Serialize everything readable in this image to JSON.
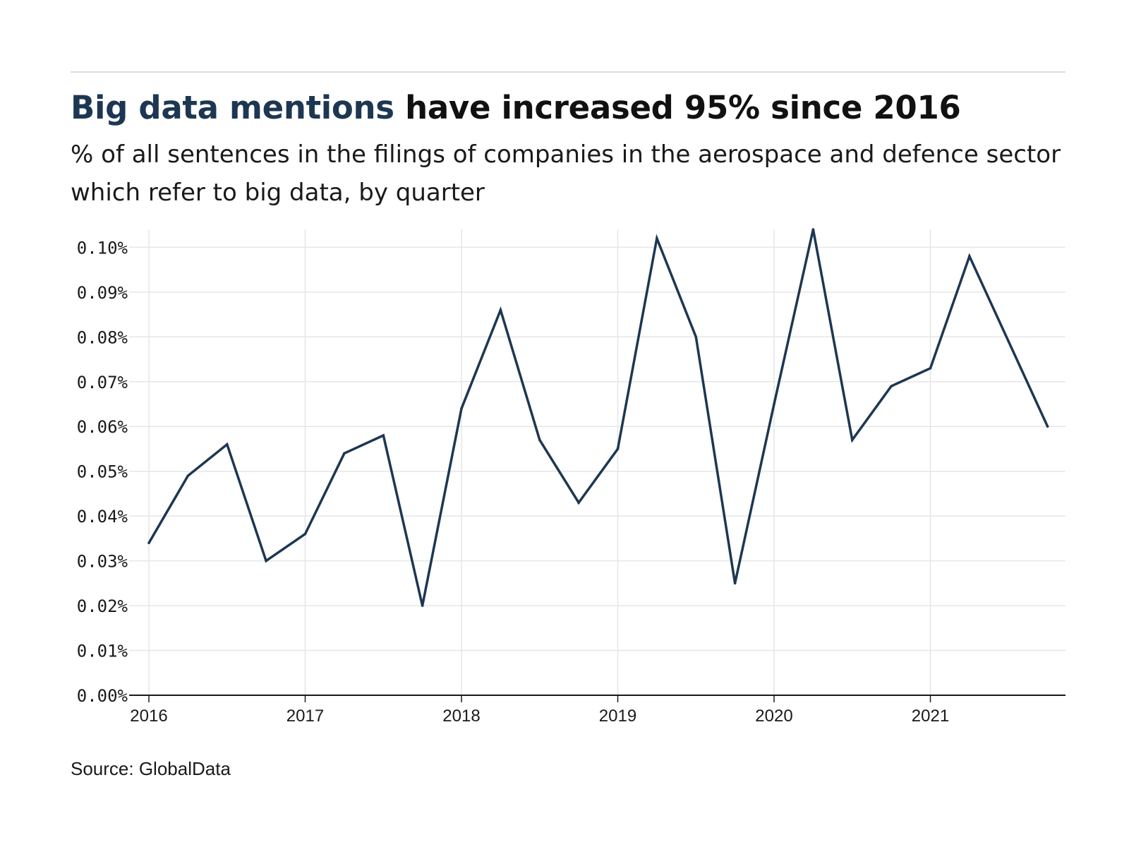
{
  "header": {
    "title_highlight": "Big data mentions",
    "title_rest": " have increased 95% since 2016",
    "subtitle": "% of all sentences in the filings of companies in the aerospace and defence sector which refer to big data, by quarter"
  },
  "footer": {
    "source": "Source: GlobalData"
  },
  "colors": {
    "line": "#1d3752",
    "title_accent": "#1d3752",
    "grid": "#e6e6e6",
    "axis": "#1a1a1a"
  },
  "chart_data": {
    "type": "line",
    "title": "Big data mentions have increased 95% since 2016",
    "subtitle": "% of all sentences in the filings of companies in the aerospace and defence sector which refer to big data, by quarter",
    "xlabel": "",
    "ylabel": "",
    "x_ticks": [
      "2016",
      "2017",
      "2018",
      "2019",
      "2020",
      "2021"
    ],
    "y_ticks": [
      "0.00%",
      "0.01%",
      "0.02%",
      "0.03%",
      "0.04%",
      "0.05%",
      "0.06%",
      "0.07%",
      "0.08%",
      "0.09%",
      "0.10%"
    ],
    "xlim": [
      "2016-Q1",
      "2021-Q4"
    ],
    "ylim": [
      0,
      0.104
    ],
    "grid": true,
    "legend": "none",
    "series": [
      {
        "x": [
          "2016-Q1",
          "2016-Q2",
          "2016-Q3",
          "2016-Q4",
          "2017-Q1",
          "2017-Q2",
          "2017-Q3",
          "2017-Q4",
          "2018-Q1",
          "2018-Q2",
          "2018-Q3",
          "2018-Q4",
          "2019-Q1",
          "2019-Q2",
          "2019-Q3",
          "2019-Q4",
          "2020-Q1",
          "2020-Q2",
          "2020-Q3",
          "2020-Q4",
          "2021-Q1",
          "2021-Q2",
          "2021-Q3",
          "2021-Q4"
        ],
        "values": [
          0.034,
          0.049,
          0.056,
          0.03,
          0.036,
          0.054,
          0.058,
          0.02,
          0.064,
          0.086,
          0.057,
          0.043,
          0.055,
          0.102,
          0.08,
          0.025,
          0.065,
          0.104,
          0.057,
          0.069,
          0.073,
          0.098,
          0.079,
          0.06
        ]
      }
    ]
  }
}
